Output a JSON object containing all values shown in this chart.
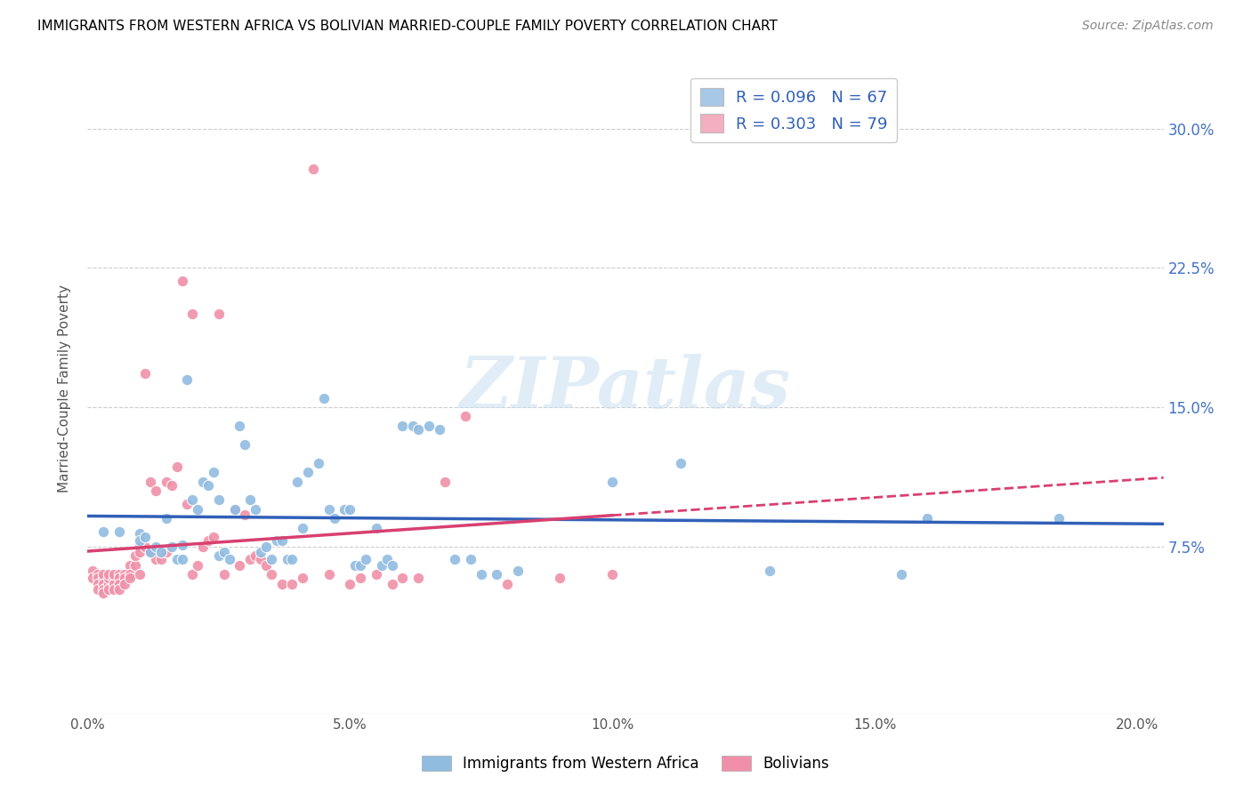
{
  "title": "IMMIGRANTS FROM WESTERN AFRICA VS BOLIVIAN MARRIED-COUPLE FAMILY POVERTY CORRELATION CHART",
  "source": "Source: ZipAtlas.com",
  "ylabel": "Married-Couple Family Poverty",
  "x_tick_labels": [
    "0.0%",
    "5.0%",
    "10.0%",
    "15.0%",
    "20.0%"
  ],
  "x_tick_vals": [
    0.0,
    0.05,
    0.1,
    0.15,
    0.2
  ],
  "y_tick_labels": [
    "7.5%",
    "15.0%",
    "22.5%",
    "30.0%"
  ],
  "y_tick_vals": [
    0.075,
    0.15,
    0.225,
    0.3
  ],
  "xlim": [
    0.0,
    0.205
  ],
  "ylim": [
    -0.015,
    0.335
  ],
  "legend_entries": [
    {
      "color": "#a8c8e8",
      "R": "0.096",
      "N": "67"
    },
    {
      "color": "#f4b0c0",
      "R": "0.303",
      "N": "79"
    }
  ],
  "legend_labels": [
    "Immigrants from Western Africa",
    "Bolivians"
  ],
  "blue_color": "#90bce0",
  "pink_color": "#f090a8",
  "trendline_blue": "#3060b8",
  "trendline_pink": "#d84070",
  "trendline_pink_dashed": "#d84070",
  "watermark": "ZIPatlas",
  "blue_scatter_x": [
    0.003,
    0.006,
    0.01,
    0.01,
    0.011,
    0.012,
    0.013,
    0.014,
    0.015,
    0.016,
    0.017,
    0.018,
    0.018,
    0.019,
    0.02,
    0.021,
    0.022,
    0.023,
    0.024,
    0.025,
    0.025,
    0.026,
    0.027,
    0.028,
    0.029,
    0.03,
    0.031,
    0.032,
    0.033,
    0.034,
    0.035,
    0.036,
    0.037,
    0.038,
    0.039,
    0.04,
    0.041,
    0.042,
    0.044,
    0.045,
    0.046,
    0.047,
    0.049,
    0.05,
    0.051,
    0.052,
    0.053,
    0.055,
    0.056,
    0.057,
    0.058,
    0.06,
    0.062,
    0.063,
    0.065,
    0.067,
    0.07,
    0.073,
    0.075,
    0.078,
    0.082,
    0.1,
    0.113,
    0.13,
    0.155,
    0.16,
    0.185
  ],
  "blue_scatter_y": [
    0.083,
    0.083,
    0.082,
    0.078,
    0.08,
    0.072,
    0.075,
    0.072,
    0.09,
    0.075,
    0.068,
    0.068,
    0.076,
    0.165,
    0.1,
    0.095,
    0.11,
    0.108,
    0.115,
    0.1,
    0.07,
    0.072,
    0.068,
    0.095,
    0.14,
    0.13,
    0.1,
    0.095,
    0.072,
    0.075,
    0.068,
    0.078,
    0.078,
    0.068,
    0.068,
    0.11,
    0.085,
    0.115,
    0.12,
    0.155,
    0.095,
    0.09,
    0.095,
    0.095,
    0.065,
    0.065,
    0.068,
    0.085,
    0.065,
    0.068,
    0.065,
    0.14,
    0.14,
    0.138,
    0.14,
    0.138,
    0.068,
    0.068,
    0.06,
    0.06,
    0.062,
    0.11,
    0.12,
    0.062,
    0.06,
    0.09,
    0.09
  ],
  "pink_scatter_x": [
    0.001,
    0.001,
    0.002,
    0.002,
    0.002,
    0.002,
    0.003,
    0.003,
    0.003,
    0.003,
    0.003,
    0.004,
    0.004,
    0.004,
    0.004,
    0.005,
    0.005,
    0.005,
    0.005,
    0.006,
    0.006,
    0.006,
    0.006,
    0.007,
    0.007,
    0.007,
    0.008,
    0.008,
    0.008,
    0.009,
    0.009,
    0.01,
    0.01,
    0.01,
    0.011,
    0.011,
    0.012,
    0.012,
    0.013,
    0.013,
    0.014,
    0.015,
    0.015,
    0.016,
    0.017,
    0.018,
    0.019,
    0.02,
    0.02,
    0.021,
    0.022,
    0.023,
    0.024,
    0.025,
    0.026,
    0.028,
    0.029,
    0.03,
    0.031,
    0.032,
    0.033,
    0.034,
    0.035,
    0.037,
    0.039,
    0.041,
    0.043,
    0.046,
    0.05,
    0.052,
    0.055,
    0.058,
    0.06,
    0.063,
    0.068,
    0.072,
    0.08,
    0.09,
    0.1
  ],
  "pink_scatter_y": [
    0.062,
    0.058,
    0.06,
    0.058,
    0.055,
    0.052,
    0.058,
    0.06,
    0.055,
    0.052,
    0.05,
    0.055,
    0.058,
    0.06,
    0.052,
    0.058,
    0.055,
    0.06,
    0.052,
    0.06,
    0.058,
    0.055,
    0.052,
    0.06,
    0.058,
    0.055,
    0.065,
    0.06,
    0.058,
    0.065,
    0.07,
    0.075,
    0.072,
    0.06,
    0.168,
    0.075,
    0.11,
    0.072,
    0.105,
    0.068,
    0.068,
    0.11,
    0.072,
    0.108,
    0.118,
    0.218,
    0.098,
    0.06,
    0.2,
    0.065,
    0.075,
    0.078,
    0.08,
    0.2,
    0.06,
    0.095,
    0.065,
    0.092,
    0.068,
    0.07,
    0.068,
    0.065,
    0.06,
    0.055,
    0.055,
    0.058,
    0.278,
    0.06,
    0.055,
    0.058,
    0.06,
    0.055,
    0.058,
    0.058,
    0.11,
    0.145,
    0.055,
    0.058,
    0.06
  ]
}
